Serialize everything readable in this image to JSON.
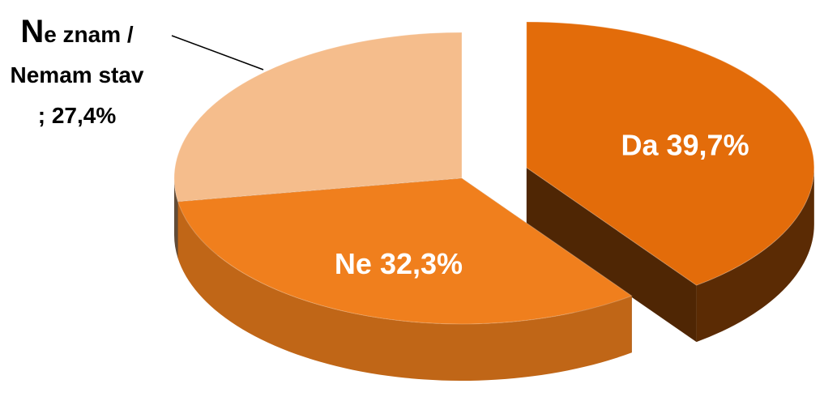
{
  "chart_data": {
    "type": "pie",
    "categories": [
      "Da",
      "Ne",
      "Ne znam / Nemam stav"
    ],
    "values": [
      39.7,
      32.3,
      27.4
    ],
    "value_labels": [
      "39,7%",
      "32,3%",
      "27,4%"
    ],
    "colors": [
      "#e36c0a",
      "#f07f1d",
      "#f5bd8c"
    ],
    "explode": [
      true,
      false,
      false
    ]
  }
}
